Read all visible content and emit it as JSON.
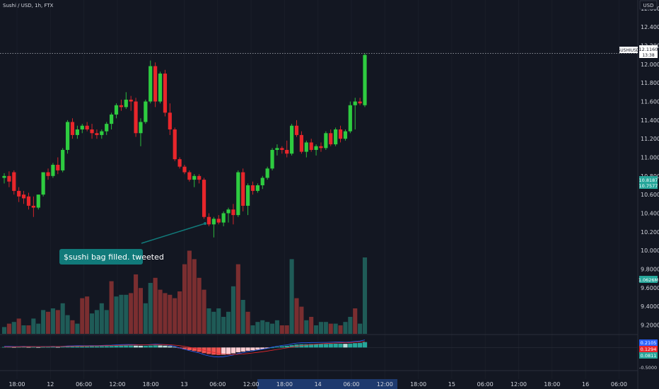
{
  "header": {
    "symbol_label": "Sushi / USD, 1h, FTX",
    "currency_badge": "USD"
  },
  "annotation": {
    "text": "$sushi bag filled. tweeted"
  },
  "price_tags": {
    "current_symbol": "SUSHIUSD",
    "current_value": "12.1160",
    "current_countdown": "13:38",
    "ma_value_a": "10.8187",
    "ma_value_b": "10.7577",
    "volume_value": "1.0626M"
  },
  "macd_tags": {
    "value_1": "0.2105",
    "value_2": "0.1294",
    "value_3": "0.0811",
    "zero_tick": "0.0000",
    "neg_tick": "-0.5000"
  },
  "colors": {
    "background": "#131722",
    "up": "#26a69a",
    "candle_up": "#2ecc40",
    "candle_down": "#e8262b",
    "vol_up": "#1f5b57",
    "vol_down": "#7a2e30",
    "annotation_bg": "#117a7a",
    "highlight_axis": "#1e3a6e"
  },
  "chart_data": {
    "type": "candlestick",
    "title": "Sushi / USD, 1h, FTX",
    "y_ticks": [
      "12.6000",
      "12.4000",
      "12.2000",
      "12.0000",
      "11.8000",
      "11.6000",
      "11.4000",
      "11.2000",
      "11.0000",
      "10.8000",
      "10.6000",
      "10.4000",
      "10.2000",
      "10.0000",
      "9.8000",
      "9.6000",
      "9.4000",
      "9.2000"
    ],
    "x_ticks": [
      "18:00",
      "12",
      "06:00",
      "12:00",
      "18:00",
      "13",
      "06:00",
      "12:00",
      "18:00",
      "14",
      "06:00",
      "12:00",
      "18:00",
      "15",
      "06:00",
      "12:00",
      "18:00",
      "16",
      "06:00"
    ],
    "ylim": [
      9.15,
      12.66
    ],
    "current_price": 12.116,
    "candles": [
      {
        "o": 10.78,
        "h": 10.83,
        "l": 10.72,
        "c": 10.8
      },
      {
        "o": 10.8,
        "h": 10.85,
        "l": 10.68,
        "c": 10.74
      },
      {
        "o": 10.84,
        "h": 10.86,
        "l": 10.6,
        "c": 10.64
      },
      {
        "o": 10.64,
        "h": 10.68,
        "l": 10.52,
        "c": 10.58
      },
      {
        "o": 10.6,
        "h": 10.64,
        "l": 10.5,
        "c": 10.56
      },
      {
        "o": 10.58,
        "h": 10.62,
        "l": 10.44,
        "c": 10.48
      },
      {
        "o": 10.48,
        "h": 10.58,
        "l": 10.36,
        "c": 10.46
      },
      {
        "o": 10.46,
        "h": 10.6,
        "l": 10.44,
        "c": 10.6
      },
      {
        "o": 10.6,
        "h": 10.84,
        "l": 10.58,
        "c": 10.84
      },
      {
        "o": 10.84,
        "h": 10.88,
        "l": 10.76,
        "c": 10.8
      },
      {
        "o": 10.8,
        "h": 10.94,
        "l": 10.78,
        "c": 10.92
      },
      {
        "o": 10.92,
        "h": 11.0,
        "l": 10.82,
        "c": 10.86
      },
      {
        "o": 10.86,
        "h": 11.1,
        "l": 10.84,
        "c": 11.08
      },
      {
        "o": 11.08,
        "h": 11.4,
        "l": 11.04,
        "c": 11.38
      },
      {
        "o": 11.38,
        "h": 11.42,
        "l": 11.2,
        "c": 11.24
      },
      {
        "o": 11.24,
        "h": 11.34,
        "l": 11.2,
        "c": 11.3
      },
      {
        "o": 11.3,
        "h": 11.36,
        "l": 11.26,
        "c": 11.34
      },
      {
        "o": 11.34,
        "h": 11.38,
        "l": 11.28,
        "c": 11.3
      },
      {
        "o": 11.3,
        "h": 11.36,
        "l": 11.2,
        "c": 11.26
      },
      {
        "o": 11.26,
        "h": 11.3,
        "l": 11.2,
        "c": 11.24
      },
      {
        "o": 11.24,
        "h": 11.3,
        "l": 11.2,
        "c": 11.28
      },
      {
        "o": 11.28,
        "h": 11.38,
        "l": 11.24,
        "c": 11.36
      },
      {
        "o": 11.36,
        "h": 11.48,
        "l": 11.3,
        "c": 11.46
      },
      {
        "o": 11.46,
        "h": 11.58,
        "l": 11.42,
        "c": 11.56
      },
      {
        "o": 11.56,
        "h": 11.62,
        "l": 11.5,
        "c": 11.54
      },
      {
        "o": 11.54,
        "h": 11.7,
        "l": 11.52,
        "c": 11.62
      },
      {
        "o": 11.62,
        "h": 11.66,
        "l": 11.5,
        "c": 11.6
      },
      {
        "o": 11.6,
        "h": 11.64,
        "l": 11.22,
        "c": 11.26
      },
      {
        "o": 11.26,
        "h": 11.42,
        "l": 11.12,
        "c": 11.38
      },
      {
        "o": 11.38,
        "h": 11.62,
        "l": 11.36,
        "c": 11.6
      },
      {
        "o": 11.6,
        "h": 12.04,
        "l": 11.58,
        "c": 11.98
      },
      {
        "o": 11.98,
        "h": 12.02,
        "l": 11.54,
        "c": 11.6
      },
      {
        "o": 11.6,
        "h": 11.92,
        "l": 11.58,
        "c": 11.9
      },
      {
        "o": 11.9,
        "h": 11.94,
        "l": 11.44,
        "c": 11.48
      },
      {
        "o": 11.48,
        "h": 11.58,
        "l": 11.24,
        "c": 11.3
      },
      {
        "o": 11.3,
        "h": 11.32,
        "l": 10.96,
        "c": 10.98
      },
      {
        "o": 10.98,
        "h": 11.0,
        "l": 10.88,
        "c": 10.9
      },
      {
        "o": 10.9,
        "h": 10.92,
        "l": 10.82,
        "c": 10.84
      },
      {
        "o": 10.84,
        "h": 10.86,
        "l": 10.74,
        "c": 10.76
      },
      {
        "o": 10.76,
        "h": 10.82,
        "l": 10.68,
        "c": 10.8
      },
      {
        "o": 10.8,
        "h": 10.82,
        "l": 10.72,
        "c": 10.76
      },
      {
        "o": 10.76,
        "h": 10.78,
        "l": 10.34,
        "c": 10.36
      },
      {
        "o": 10.36,
        "h": 10.4,
        "l": 10.26,
        "c": 10.28
      },
      {
        "o": 10.28,
        "h": 10.36,
        "l": 10.14,
        "c": 10.34
      },
      {
        "o": 10.34,
        "h": 10.38,
        "l": 10.28,
        "c": 10.3
      },
      {
        "o": 10.3,
        "h": 10.42,
        "l": 10.26,
        "c": 10.4
      },
      {
        "o": 10.4,
        "h": 10.46,
        "l": 10.3,
        "c": 10.44
      },
      {
        "o": 10.44,
        "h": 10.5,
        "l": 10.28,
        "c": 10.38
      },
      {
        "o": 10.38,
        "h": 10.86,
        "l": 10.36,
        "c": 10.84
      },
      {
        "o": 10.84,
        "h": 10.88,
        "l": 10.42,
        "c": 10.48
      },
      {
        "o": 10.48,
        "h": 10.72,
        "l": 10.38,
        "c": 10.7
      },
      {
        "o": 10.7,
        "h": 10.74,
        "l": 10.6,
        "c": 10.64
      },
      {
        "o": 10.64,
        "h": 10.72,
        "l": 10.62,
        "c": 10.7
      },
      {
        "o": 10.7,
        "h": 10.8,
        "l": 10.66,
        "c": 10.78
      },
      {
        "o": 10.78,
        "h": 10.9,
        "l": 10.76,
        "c": 10.88
      },
      {
        "o": 10.88,
        "h": 11.1,
        "l": 10.86,
        "c": 11.08
      },
      {
        "o": 11.08,
        "h": 11.14,
        "l": 11.02,
        "c": 11.1
      },
      {
        "o": 11.1,
        "h": 11.12,
        "l": 11.04,
        "c": 11.08
      },
      {
        "o": 11.08,
        "h": 11.18,
        "l": 11.0,
        "c": 11.04
      },
      {
        "o": 11.04,
        "h": 11.36,
        "l": 11.02,
        "c": 11.34
      },
      {
        "o": 11.34,
        "h": 11.4,
        "l": 11.22,
        "c": 11.24
      },
      {
        "o": 11.24,
        "h": 11.28,
        "l": 11.04,
        "c": 11.06
      },
      {
        "o": 11.06,
        "h": 11.18,
        "l": 11.0,
        "c": 11.16
      },
      {
        "o": 11.16,
        "h": 11.2,
        "l": 11.06,
        "c": 11.08
      },
      {
        "o": 11.08,
        "h": 11.14,
        "l": 11.02,
        "c": 11.12
      },
      {
        "o": 11.12,
        "h": 11.16,
        "l": 11.06,
        "c": 11.1
      },
      {
        "o": 11.1,
        "h": 11.28,
        "l": 11.08,
        "c": 11.26
      },
      {
        "o": 11.26,
        "h": 11.3,
        "l": 11.12,
        "c": 11.14
      },
      {
        "o": 11.14,
        "h": 11.32,
        "l": 11.12,
        "c": 11.3
      },
      {
        "o": 11.3,
        "h": 11.34,
        "l": 11.16,
        "c": 11.2
      },
      {
        "o": 11.2,
        "h": 11.3,
        "l": 11.18,
        "c": 11.28
      },
      {
        "o": 11.28,
        "h": 11.6,
        "l": 11.26,
        "c": 11.56
      },
      {
        "o": 11.56,
        "h": 11.64,
        "l": 11.3,
        "c": 11.6
      },
      {
        "o": 11.6,
        "h": 11.64,
        "l": 11.56,
        "c": 11.58
      },
      {
        "o": 11.56,
        "h": 12.12,
        "l": 11.54,
        "c": 12.1
      }
    ],
    "volume_ticks": [
      "1.0626M"
    ],
    "volumes": [
      {
        "v": 0.08,
        "up": true
      },
      {
        "v": 0.12,
        "up": false
      },
      {
        "v": 0.14,
        "up": true
      },
      {
        "v": 0.18,
        "up": false
      },
      {
        "v": 0.1,
        "up": true
      },
      {
        "v": 0.1,
        "up": false
      },
      {
        "v": 0.18,
        "up": true
      },
      {
        "v": 0.12,
        "up": true
      },
      {
        "v": 0.28,
        "up": true
      },
      {
        "v": 0.26,
        "up": false
      },
      {
        "v": 0.3,
        "up": true
      },
      {
        "v": 0.28,
        "up": false
      },
      {
        "v": 0.36,
        "up": true
      },
      {
        "v": 0.22,
        "up": true
      },
      {
        "v": 0.16,
        "up": false
      },
      {
        "v": 0.12,
        "up": true
      },
      {
        "v": 0.42,
        "up": false
      },
      {
        "v": 0.44,
        "up": false
      },
      {
        "v": 0.24,
        "up": true
      },
      {
        "v": 0.28,
        "up": true
      },
      {
        "v": 0.36,
        "up": true
      },
      {
        "v": 0.28,
        "up": true
      },
      {
        "v": 0.62,
        "up": false
      },
      {
        "v": 0.44,
        "up": true
      },
      {
        "v": 0.46,
        "up": true
      },
      {
        "v": 0.46,
        "up": true
      },
      {
        "v": 0.48,
        "up": false
      },
      {
        "v": 0.7,
        "up": false
      },
      {
        "v": 0.54,
        "up": false
      },
      {
        "v": 0.36,
        "up": true
      },
      {
        "v": 0.6,
        "up": true
      },
      {
        "v": 0.66,
        "up": false
      },
      {
        "v": 0.52,
        "up": false
      },
      {
        "v": 0.48,
        "up": false
      },
      {
        "v": 0.46,
        "up": false
      },
      {
        "v": 0.42,
        "up": false
      },
      {
        "v": 0.5,
        "up": false
      },
      {
        "v": 0.82,
        "up": false
      },
      {
        "v": 0.98,
        "up": false
      },
      {
        "v": 0.88,
        "up": false
      },
      {
        "v": 0.66,
        "up": false
      },
      {
        "v": 0.52,
        "up": false
      },
      {
        "v": 0.3,
        "up": true
      },
      {
        "v": 0.26,
        "up": true
      },
      {
        "v": 0.3,
        "up": true
      },
      {
        "v": 0.2,
        "up": true
      },
      {
        "v": 0.26,
        "up": true
      },
      {
        "v": 0.56,
        "up": true
      },
      {
        "v": 0.82,
        "up": false
      },
      {
        "v": 0.4,
        "up": true
      },
      {
        "v": 0.26,
        "up": false
      },
      {
        "v": 0.1,
        "up": true
      },
      {
        "v": 0.14,
        "up": true
      },
      {
        "v": 0.16,
        "up": true
      },
      {
        "v": 0.14,
        "up": true
      },
      {
        "v": 0.12,
        "up": true
      },
      {
        "v": 0.16,
        "up": true
      },
      {
        "v": 0.1,
        "up": false
      },
      {
        "v": 0.1,
        "up": false
      },
      {
        "v": 0.88,
        "up": true
      },
      {
        "v": 0.42,
        "up": false
      },
      {
        "v": 0.32,
        "up": false
      },
      {
        "v": 0.16,
        "up": true
      },
      {
        "v": 0.2,
        "up": false
      },
      {
        "v": 0.1,
        "up": true
      },
      {
        "v": 0.14,
        "up": true
      },
      {
        "v": 0.14,
        "up": true
      },
      {
        "v": 0.12,
        "up": false
      },
      {
        "v": 0.12,
        "up": true
      },
      {
        "v": 0.1,
        "up": false
      },
      {
        "v": 0.14,
        "up": true
      },
      {
        "v": 0.2,
        "up": true
      },
      {
        "v": 0.3,
        "up": false
      },
      {
        "v": 0.12,
        "up": true
      },
      {
        "v": 0.9,
        "up": true
      }
    ],
    "macd": {
      "zero": 0,
      "range": [
        -0.6,
        0.3
      ],
      "hist": [
        0.005,
        0.005,
        0.004,
        0.004,
        0.005,
        0.004,
        0.004,
        0.003,
        0.004,
        0.004,
        0.005,
        0.004,
        0.006,
        0.008,
        0.009,
        0.01,
        0.01,
        0.01,
        0.011,
        0.011,
        0.012,
        0.013,
        0.014,
        0.016,
        0.017,
        0.018,
        0.018,
        0.017,
        0.016,
        0.016,
        0.018,
        0.02,
        0.019,
        0.017,
        0.012,
        0.005,
        -0.006,
        -0.015,
        -0.024,
        -0.032,
        -0.04,
        -0.052,
        -0.06,
        -0.066,
        -0.068,
        -0.066,
        -0.06,
        -0.054,
        -0.044,
        -0.038,
        -0.03,
        -0.026,
        -0.02,
        -0.014,
        -0.008,
        0.0,
        0.006,
        0.012,
        0.016,
        0.022,
        0.028,
        0.03,
        0.03,
        0.032,
        0.032,
        0.033,
        0.033,
        0.034,
        0.035,
        0.035,
        0.034,
        0.036,
        0.04,
        0.042,
        0.05
      ]
    }
  }
}
